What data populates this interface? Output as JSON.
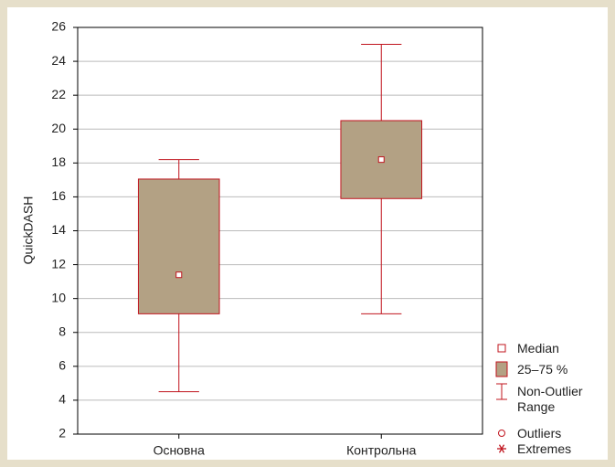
{
  "chart_data": {
    "type": "box",
    "ylabel": "QuickDASH",
    "categories": [
      "Основна",
      "Контрольна"
    ],
    "boxes": [
      {
        "min": 4.5,
        "q1": 9.1,
        "median": 11.4,
        "q3": 17.05,
        "max": 18.2
      },
      {
        "min": 9.1,
        "q1": 15.9,
        "median": 18.2,
        "q3": 20.5,
        "max": 25
      }
    ],
    "ylim": [
      2,
      26
    ],
    "yticks": [
      2,
      4,
      6,
      8,
      10,
      12,
      14,
      16,
      18,
      20,
      22,
      24,
      26
    ],
    "grid": true,
    "box_color": "#b3a184",
    "line_color": "#c0141e",
    "legend": {
      "position": "lower right",
      "items": [
        "Median",
        "25–75 %",
        "Non-Outlier Range",
        "Outliers",
        "Extremes"
      ]
    }
  }
}
